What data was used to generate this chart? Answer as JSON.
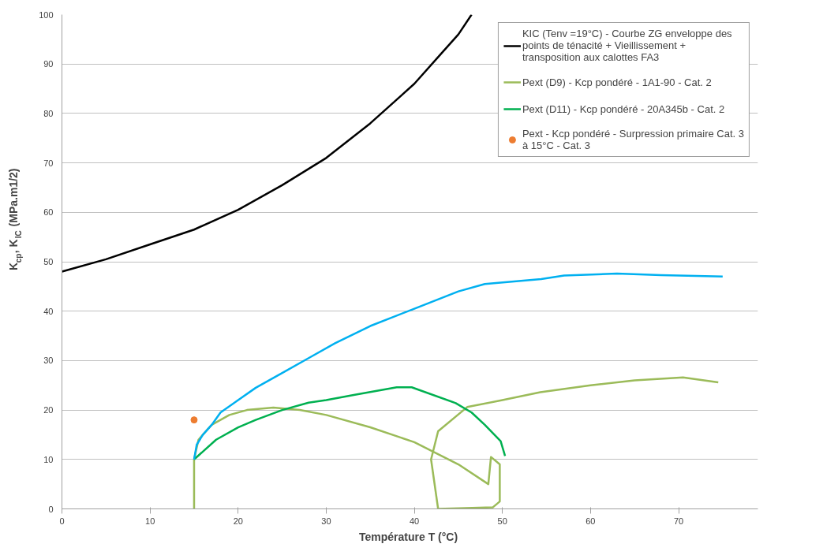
{
  "chart_data": {
    "type": "line",
    "xlabel": "Température  T (°C)",
    "ylabel": "K$_{cp}$, K$_{IC}$ (MPa.m1/2)",
    "xlim": [
      0,
      79
    ],
    "ylim": [
      0,
      100
    ],
    "xticks": [
      0,
      10,
      20,
      30,
      40,
      50,
      60,
      70
    ],
    "yticks": [
      0,
      10,
      20,
      30,
      40,
      50,
      60,
      70,
      80,
      90,
      100
    ],
    "grid": "y",
    "legend": "top right",
    "marker": "none",
    "line_style": "solid",
    "series": [
      {
        "name": "KIC (Tenv =19°C) - Courbe ZG enveloppe des points de ténacité + Vieillissement + transposition aux calottes FA3",
        "color": "#000000",
        "x": [
          0,
          5,
          10,
          15,
          20,
          25,
          30,
          35,
          40,
          43,
          45,
          46.5
        ],
        "values": [
          48,
          50.5,
          53.5,
          56.5,
          60.5,
          65.5,
          71,
          78,
          86,
          92,
          96,
          100
        ]
      },
      {
        "name": "Pext (D9) - Kcp pondéré - 1A1-90 - Cat. 2",
        "color": "#9bbb59",
        "x": [
          15,
          15,
          15.5,
          17,
          19,
          21,
          24,
          27,
          30,
          35,
          40,
          45,
          48.4,
          48.7,
          49.7,
          49.7,
          48.9,
          42.7,
          41.9,
          42.7,
          46,
          50,
          54.3,
          60,
          65,
          70.5,
          74.5
        ],
        "values": [
          0,
          10,
          14,
          17,
          19,
          20,
          20.5,
          20,
          19,
          16.5,
          13.5,
          9,
          5,
          10.5,
          9,
          1.5,
          0.3,
          0,
          10,
          15.7,
          20.6,
          22,
          23.6,
          25,
          26,
          26.6,
          25.6
        ]
      },
      {
        "name": "Pext (D11) - Kcp pondéré - 20A345b - Cat. 2",
        "color": "#00b050",
        "x": [
          15,
          17.5,
          20,
          22,
          25,
          28,
          30,
          33,
          38,
          39.7,
          44.7,
          46.5,
          48,
          49.8,
          50.3
        ],
        "values": [
          10,
          14,
          16.5,
          18,
          20,
          21.5,
          22,
          23,
          24.6,
          24.6,
          21.4,
          19.5,
          17,
          13.7,
          10.7
        ]
      },
      {
        "name": "Pext - Kcp pondéré - Surpression primaire Cat. 3 à 15°C - Cat. 3",
        "color": "#ed7d31",
        "type": "scatter",
        "marker": "circle",
        "x": [
          15
        ],
        "values": [
          18
        ]
      },
      {
        "color": "#00b0f0",
        "x": [
          15,
          15.3,
          16,
          17,
          18,
          20,
          22,
          25,
          28,
          31,
          35,
          40,
          45,
          48,
          54.4,
          57,
          63,
          68,
          75
        ],
        "values": [
          10,
          13,
          15,
          17,
          19.5,
          22,
          24.5,
          27.5,
          30.5,
          33.5,
          37,
          40.5,
          44,
          45.5,
          46.5,
          47.2,
          47.6,
          47.3,
          47
        ]
      }
    ]
  }
}
